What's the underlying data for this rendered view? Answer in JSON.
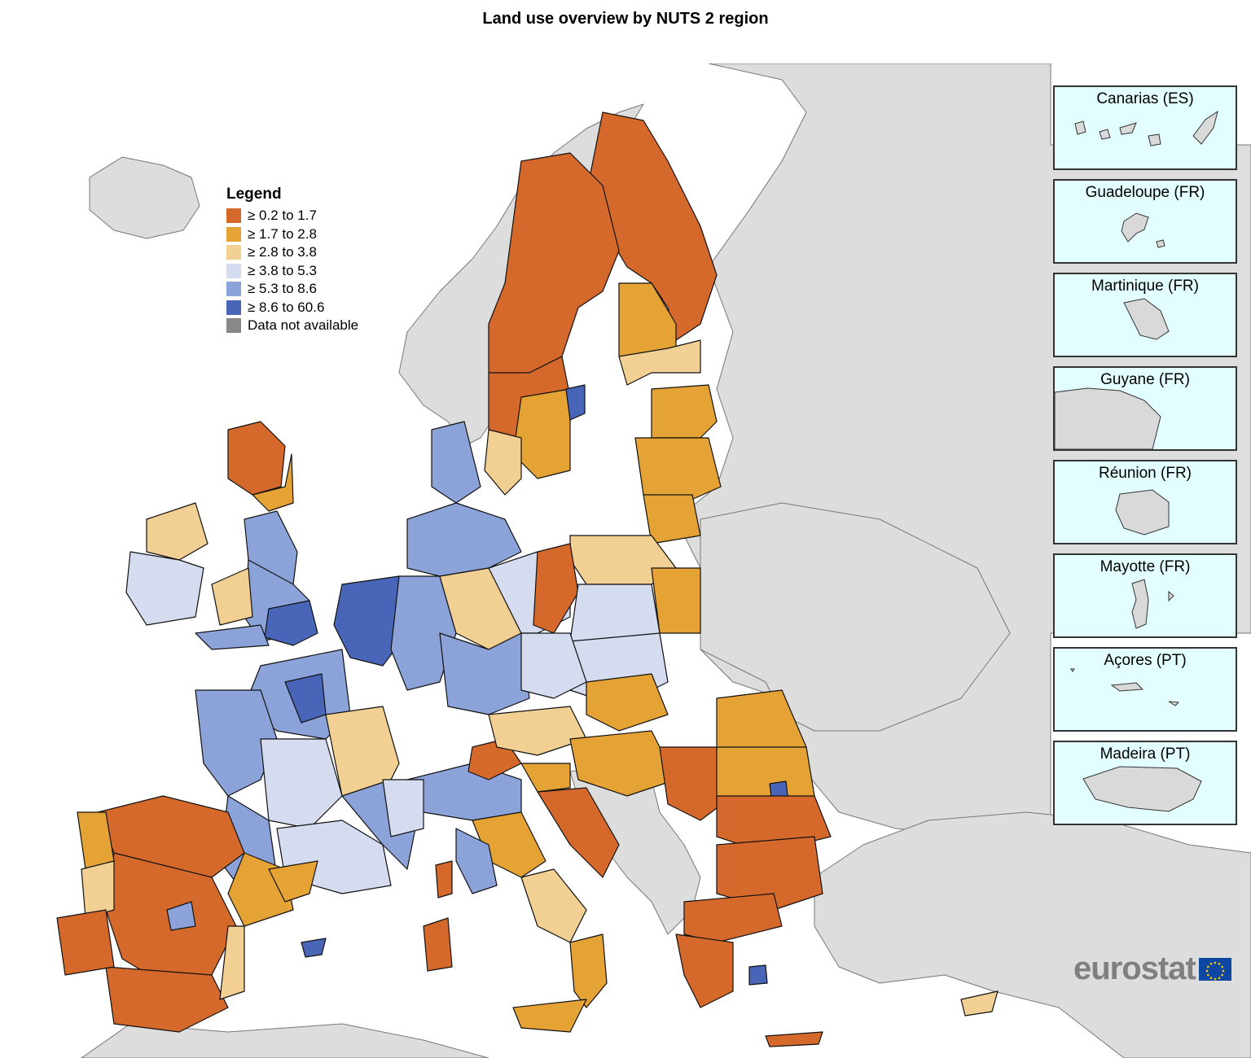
{
  "title": "Land use overview by NUTS 2 region",
  "legend": {
    "title": "Legend",
    "classes": [
      {
        "label": "≥ 0.2 to 1.7",
        "color": "#d5692c"
      },
      {
        "label": "≥ 1.7 to 2.8",
        "color": "#e5a336"
      },
      {
        "label": "≥ 2.8 to 3.8",
        "color": "#f2cf92"
      },
      {
        "label": "≥ 3.8 to 5.3",
        "color": "#d6dcf0"
      },
      {
        "label": "≥ 5.3 to 8.6",
        "color": "#8ba3d8"
      },
      {
        "label": "≥ 8.6 to 60.6",
        "color": "#4965b8"
      },
      {
        "label": "Data not available",
        "color": "#888888"
      }
    ]
  },
  "colors": {
    "non_eu": "#dddddd",
    "sea": "#ffffff",
    "inset_sea": "#e2fefe",
    "logo_text": "#7f7f7f",
    "logo_flag": "#0e47a1"
  },
  "insets": [
    {
      "label": "Canarias (ES)"
    },
    {
      "label": "Guadeloupe (FR)"
    },
    {
      "label": "Martinique (FR)"
    },
    {
      "label": "Guyane (FR)"
    },
    {
      "label": "Réunion (FR)"
    },
    {
      "label": "Mayotte (FR)"
    },
    {
      "label": "Açores (PT)"
    },
    {
      "label": "Madeira (PT)"
    }
  ],
  "logo": {
    "text": "eurostat"
  }
}
